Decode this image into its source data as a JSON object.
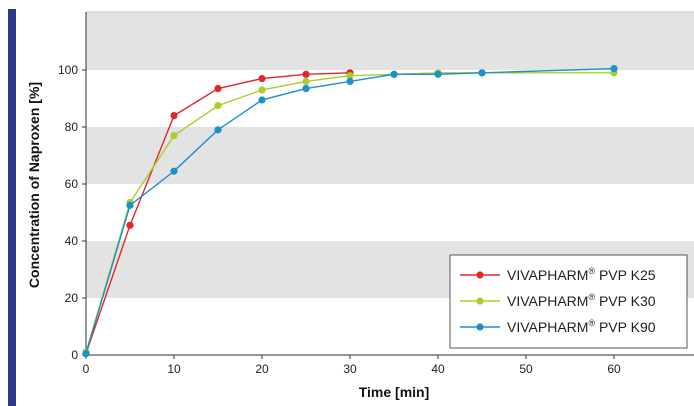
{
  "colors": {
    "accent_bar": "#2e3a87",
    "band": "#e3e3e3",
    "axis": "#333333",
    "frame": "#bdbdbd"
  },
  "chart_data": {
    "type": "line",
    "xlabel": "Time [min]",
    "ylabel": "Concentration of Naproxen [%]",
    "xlim": [
      0,
      68
    ],
    "ylim": [
      0,
      120
    ],
    "x_ticks": [
      0,
      10,
      20,
      30,
      40,
      50,
      60
    ],
    "y_ticks": [
      0,
      20,
      40,
      60,
      80,
      100
    ],
    "grid": false,
    "shaded_bands_y": [
      [
        20,
        40
      ],
      [
        60,
        80
      ],
      [
        100,
        120
      ]
    ],
    "legend_position": "bottom-right",
    "series": [
      {
        "name": "VIVAPHARM",
        "name_sup": "®",
        "name_suffix": " PVP K25",
        "color": "#e2262a",
        "x": [
          0,
          5,
          10,
          15,
          20,
          25,
          30
        ],
        "y": [
          0.5,
          45.5,
          84,
          93.5,
          97,
          98.5,
          99
        ]
      },
      {
        "name": "VIVAPHARM",
        "name_sup": "®",
        "name_suffix": " PVP K30",
        "color": "#a8cf2e",
        "x": [
          0,
          5,
          10,
          15,
          20,
          25,
          30,
          35,
          40,
          45,
          60
        ],
        "y": [
          1,
          53.5,
          77,
          87.5,
          93,
          96,
          98,
          98.5,
          99,
          99,
          99
        ]
      },
      {
        "name": "VIVAPHARM",
        "name_sup": "®",
        "name_suffix": " PVP K90",
        "color": "#1e90cc",
        "x": [
          0,
          5,
          10,
          15,
          20,
          25,
          30,
          35,
          40,
          45,
          60
        ],
        "y": [
          0.5,
          52.5,
          64.5,
          79,
          89.5,
          93.5,
          96,
          98.5,
          98.5,
          99,
          100.5
        ]
      }
    ]
  }
}
